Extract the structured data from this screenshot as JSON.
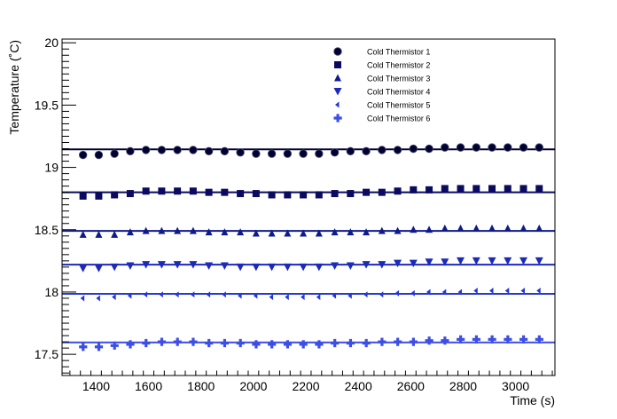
{
  "chart_data": {
    "type": "scatter",
    "title": "",
    "xlabel": "Time (s)",
    "ylabel": "Temperature (˚C)",
    "xlim": [
      1270,
      3150
    ],
    "ylim": [
      17.33,
      20.03
    ],
    "x_major_ticks": [
      1400,
      1600,
      1800,
      2000,
      2200,
      2400,
      2600,
      2800,
      3000
    ],
    "x_tick_labels": [
      "1400",
      "1600",
      "1800",
      "2000",
      "2200",
      "2400",
      "2600",
      "2800",
      "3000"
    ],
    "y_major_ticks": [
      17.5,
      18,
      18.5,
      19,
      19.5,
      20
    ],
    "y_tick_labels": [
      "17.5",
      "18",
      "18.5",
      "19",
      "19.5",
      "20"
    ],
    "grid": false,
    "legend_position": "top-right",
    "x": [
      1350,
      1410,
      1470,
      1530,
      1590,
      1650,
      1710,
      1770,
      1830,
      1890,
      1950,
      2010,
      2070,
      2130,
      2190,
      2250,
      2310,
      2370,
      2430,
      2490,
      2550,
      2610,
      2670,
      2730,
      2790,
      2850,
      2910,
      2970,
      3030,
      3090
    ],
    "series": [
      {
        "name": "Cold Thermistor 1",
        "marker": "circle",
        "color": "#000033",
        "fit_value": 19.145,
        "values": [
          19.1,
          19.1,
          19.11,
          19.13,
          19.14,
          19.14,
          19.14,
          19.14,
          19.13,
          19.13,
          19.12,
          19.11,
          19.11,
          19.11,
          19.11,
          19.11,
          19.12,
          19.13,
          19.13,
          19.14,
          19.14,
          19.15,
          19.15,
          19.16,
          19.16,
          19.16,
          19.16,
          19.16,
          19.16,
          19.16
        ]
      },
      {
        "name": "Cold Thermistor 2",
        "marker": "square",
        "color": "#0a0a60",
        "fit_value": 18.8,
        "values": [
          18.77,
          18.77,
          18.78,
          18.79,
          18.81,
          18.81,
          18.81,
          18.81,
          18.8,
          18.8,
          18.79,
          18.79,
          18.78,
          18.78,
          18.78,
          18.78,
          18.79,
          18.79,
          18.8,
          18.8,
          18.81,
          18.82,
          18.82,
          18.83,
          18.83,
          18.83,
          18.83,
          18.83,
          18.83,
          18.83
        ]
      },
      {
        "name": "Cold Thermistor 3",
        "marker": "triangle-up",
        "color": "#0f1a8c",
        "fit_value": 18.49,
        "values": [
          18.46,
          18.46,
          18.46,
          18.48,
          18.49,
          18.49,
          18.49,
          18.49,
          18.48,
          18.48,
          18.48,
          18.47,
          18.47,
          18.47,
          18.47,
          18.47,
          18.48,
          18.48,
          18.48,
          18.49,
          18.49,
          18.5,
          18.5,
          18.51,
          18.51,
          18.51,
          18.51,
          18.51,
          18.51,
          18.51
        ]
      },
      {
        "name": "Cold Thermistor 4",
        "marker": "triangle-down",
        "color": "#1c2ab8",
        "fit_value": 18.22,
        "values": [
          18.19,
          18.19,
          18.2,
          18.21,
          18.22,
          18.22,
          18.22,
          18.22,
          18.21,
          18.21,
          18.2,
          18.2,
          18.2,
          18.2,
          18.2,
          18.2,
          18.21,
          18.21,
          18.22,
          18.22,
          18.23,
          18.23,
          18.24,
          18.24,
          18.25,
          18.25,
          18.25,
          18.25,
          18.25,
          18.25
        ]
      },
      {
        "name": "Cold Thermistor 5",
        "marker": "diamond-left",
        "color": "#2438d4",
        "fit_value": 17.985,
        "values": [
          17.95,
          17.95,
          17.96,
          17.97,
          17.98,
          17.98,
          17.98,
          17.98,
          17.98,
          17.98,
          17.97,
          17.97,
          17.96,
          17.96,
          17.96,
          17.96,
          17.97,
          17.97,
          17.98,
          17.98,
          17.99,
          17.99,
          18.0,
          18.0,
          18.0,
          18.01,
          18.01,
          18.01,
          18.01,
          18.01
        ]
      },
      {
        "name": "Cold Thermistor 6",
        "marker": "cross",
        "color": "#3d4ee6",
        "fit_value": 17.595,
        "values": [
          17.56,
          17.56,
          17.57,
          17.58,
          17.59,
          17.6,
          17.6,
          17.6,
          17.59,
          17.59,
          17.59,
          17.58,
          17.58,
          17.58,
          17.58,
          17.58,
          17.59,
          17.59,
          17.59,
          17.6,
          17.6,
          17.6,
          17.61,
          17.61,
          17.62,
          17.62,
          17.62,
          17.62,
          17.62,
          17.62
        ]
      }
    ]
  }
}
